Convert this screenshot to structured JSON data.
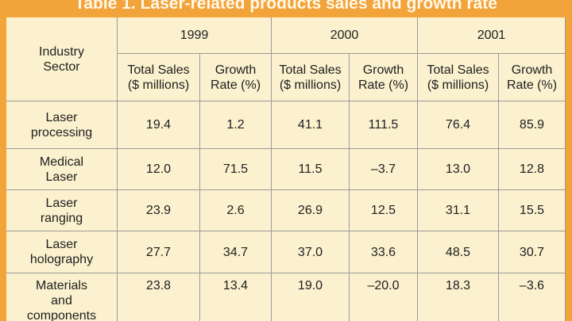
{
  "title": "Table 1. Laser-related products sales and growth rate",
  "table": {
    "sector_header": "Industry Sector",
    "years": [
      "1999",
      "2000",
      "2001"
    ],
    "subheaders": [
      "Total Sales ($ millions)",
      "Growth Rate (%)",
      "Total Sales ($ millions)",
      "Growth Rate (%)",
      "Total Sales ($ millions)",
      "Growth Rate (%)"
    ],
    "rows": [
      [
        "Laser processing",
        "19.4",
        "1.2",
        "41.1",
        "111.5",
        "76.4",
        "85.9"
      ],
      [
        "Medical Laser",
        "12.0",
        "71.5",
        "11.5",
        "–3.7",
        "13.0",
        "12.8"
      ],
      [
        "Laser ranging",
        "23.9",
        "2.6",
        "26.9",
        "12.5",
        "31.1",
        "15.5"
      ],
      [
        "Laser holography",
        "27.7",
        "34.7",
        "37.0",
        "33.6",
        "48.5",
        "30.7"
      ],
      [
        "Materials and components",
        "23.8",
        "13.4",
        "19.0",
        "–20.0",
        "18.3",
        "–3.6"
      ]
    ]
  }
}
